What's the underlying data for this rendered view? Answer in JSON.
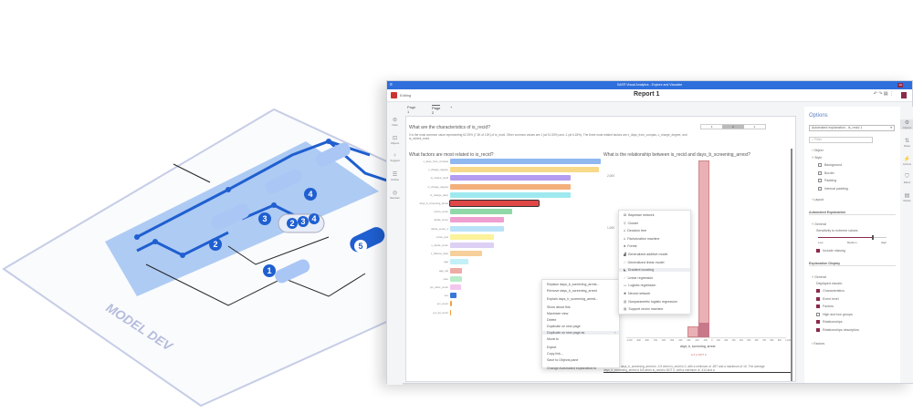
{
  "illustration": {
    "plate_label": "MODEL DEV",
    "node_badges": [
      "1",
      "2",
      "3",
      "4",
      "5"
    ],
    "stack_badges": [
      "2",
      "3",
      "4"
    ]
  },
  "window": {
    "title": "SAS® Visual Analytics - Explore and Visualize",
    "mode": "Editing",
    "report_title": "Report 1",
    "user_badge": "JH",
    "tabs": [
      {
        "label": "Page 1"
      },
      {
        "label": "Page 2"
      }
    ],
    "add_tab": "+",
    "left_rail": [
      "Data",
      "Objects",
      "Suggest",
      "Outline",
      "Nav/Jam"
    ],
    "right_rail": [
      "Options",
      "Roles",
      "Actions",
      "Filters",
      "Ranks"
    ]
  },
  "canvas": {
    "segments": [
      "1",
      "2",
      "1"
    ],
    "characteristics_title": "What are the characteristics of is_recid?",
    "characteristics_text": "0 is the most common value representing 62.29% (7.3K of 12K) of is_recid. Other common values are 1 (at 31.53%) and -1 (at 6.18%). The three most related factors are c_days_from_compas, c_charge_degree, and is_violent_recid.",
    "factors_title": "What factors are most related to is_recid?",
    "relationship_title": "What is the relationship between is_recid and days_b_screening_arrest?",
    "relationship_text": "The average days_b_screening_arrest is -4.9 when is_recid is 0, with a minimum of -597 and a maximum of 1K. The average days_b_screening_arrest is 6.8 when is_recid is NOT 0, with a minimum of -414 and a"
  },
  "chart_data": [
    {
      "type": "bar",
      "orientation": "horizontal",
      "title": "What factors are most related to is_recid?",
      "categories": [
        "c_days_from_compas",
        "c_charge_degree",
        "is_violent_recid",
        "vr_charge_degree",
        "vr_charge_desc",
        "days_b_screening_arrest",
        "priors_count",
        "decile_score",
        "decile_score_1",
        "score_text",
        "v_decile_score",
        "c_offense_date",
        "age",
        "age_cat",
        "race",
        "juv_other_count",
        "sex",
        "juv_count",
        "juv_fel_count"
      ],
      "values": [
        1.0,
        0.99,
        0.8,
        0.8,
        0.8,
        0.59,
        0.41,
        0.36,
        0.36,
        0.29,
        0.29,
        0.21,
        0.12,
        0.08,
        0.08,
        0.07,
        0.04,
        0.01,
        0.005
      ],
      "colors": [
        "#8fb8f0",
        "#f7d98a",
        "#b49cf0",
        "#f4b07a",
        "#9ee9ef",
        "#e04848",
        "#8fd9a8",
        "#ee9fd0",
        "#b9e2f8",
        "#fbf29a",
        "#ddd0f5",
        "#f6cf9a",
        "#c3f0f6",
        "#eeaaa4",
        "#b9ecc9",
        "#f3c6ee",
        "#3a78d8",
        "#f0a040",
        "#f0a040"
      ],
      "selected": "days_b_screening_arrest"
    },
    {
      "type": "bar",
      "subtype": "histogram",
      "title": "What is the relationship between is_recid and days_b_screening_arrest?",
      "xlabel": "days_b_screening_arrest",
      "yticks": [
        "2,000",
        "1,000"
      ],
      "xticks": [
        "-1,000",
        "-900",
        "-800",
        "-700",
        "-600",
        "-500",
        "-400",
        "-300",
        "-200",
        "-100",
        "0",
        "100",
        "200",
        "300",
        "400",
        "500",
        "600",
        "700",
        "800",
        "900",
        "1,100"
      ],
      "series": [
        {
          "name": "0",
          "color": "#e8a0a8"
        },
        {
          "name": "NOT 0",
          "color": "#c8788a"
        }
      ]
    }
  ],
  "context_menu": {
    "items": [
      "Replace days_b_screening_arrest...",
      "Remove days_b_screening_arrest",
      "Explain days_b_screening_arrest...",
      "Show about this",
      "Maximize view",
      "Delete",
      "Duplicate on new page",
      "Duplicate on new page as",
      "Move to",
      "Export",
      "Copy link...",
      "Save to Objects pane",
      "Change Automated explanation to"
    ],
    "highlighted": "Duplicate on new page as"
  },
  "submenu": {
    "items": [
      "Bayesian network",
      "Cluster",
      "Decision tree",
      "Factorization machine",
      "Forest",
      "Generalized additive model",
      "Generalized linear model",
      "Gradient boosting",
      "Linear regression",
      "Logistic regression",
      "Neural network",
      "Nonparametric logistic regression",
      "Support vector machine"
    ],
    "highlighted": "Gradient boosting"
  },
  "options": {
    "title": "Options",
    "selector": "Automated explanation - is_recid 1",
    "filter_placeholder": "Filter",
    "object": "Object",
    "style": "Style",
    "style_items": [
      {
        "label": "Background",
        "checked": false
      },
      {
        "label": "Border",
        "checked": false
      },
      {
        "label": "Padding",
        "checked": false
      },
      {
        "label": "Internal padding",
        "checked": false
      }
    ],
    "layout": "Layout",
    "auto_heading": "Automated Explanation",
    "general": "General",
    "sensitivity_label": "Sensitivity to extreme values",
    "sensitivity_value": 0.78,
    "slider_labels": [
      "Low",
      "Medium",
      "High"
    ],
    "include_missing": {
      "label": "Include missing",
      "checked": true
    },
    "display_heading": "Explanation Display",
    "displayed_visuals": "Displayed visuals:",
    "display_items": [
      {
        "label": "Characteristics",
        "checked": true
      },
      {
        "label": "Event level",
        "checked": true
      },
      {
        "label": "Factors",
        "checked": true
      },
      {
        "label": "High and low groups",
        "checked": false
      },
      {
        "label": "Relationships",
        "checked": true
      },
      {
        "label": "Relationships description",
        "checked": true
      }
    ],
    "factors": "Factors"
  },
  "colors": {
    "accent": "#2f6fdc",
    "checkbox": "#8a2a4a",
    "illustration_blue": "#1f5fd0"
  }
}
